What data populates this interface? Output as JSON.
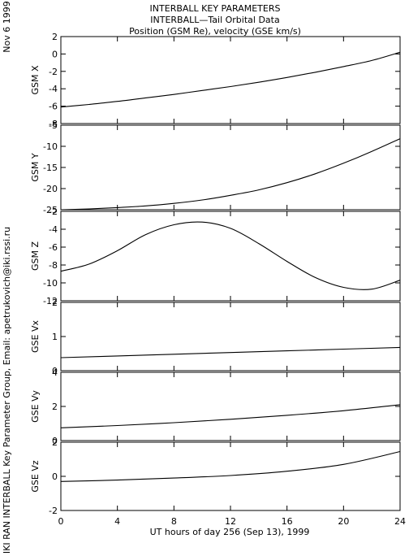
{
  "header": {
    "title_line1": "INTERBALL KEY PARAMETERS",
    "title_line2": "INTERBALL—Tail Orbital Data",
    "title_line3": "Position (GSM Re), velocity (GSE km/s)"
  },
  "side_date": "Nov  6 1999",
  "side_credit": "IKI RAN INTERBALL Key Parameter Group, Email: apetrukovich@iki.rssi.ru",
  "xaxis": {
    "label": "UT hours of day 256 (Sep 13), 1999",
    "ticks": [
      "0",
      "4",
      "8",
      "12",
      "16",
      "20",
      "24"
    ],
    "range": [
      0,
      24
    ]
  },
  "chart_data": [
    {
      "type": "line",
      "ylabel": "GSM X",
      "ylim": [
        -8,
        2
      ],
      "yticks": [
        2,
        0,
        -2,
        -4,
        -6,
        -8
      ],
      "x": [
        0,
        2,
        4,
        6,
        8,
        10,
        12,
        14,
        16,
        18,
        20,
        22,
        24
      ],
      "y": [
        -6.1,
        -5.8,
        -5.45,
        -5.05,
        -4.65,
        -4.2,
        -3.75,
        -3.25,
        -2.7,
        -2.1,
        -1.45,
        -0.75,
        0.2
      ]
    },
    {
      "type": "line",
      "ylabel": "GSM Y",
      "ylim": [
        -25,
        -5
      ],
      "yticks": [
        -5,
        -10,
        -15,
        -20,
        -25
      ],
      "x": [
        0,
        2,
        4,
        6,
        8,
        10,
        12,
        14,
        16,
        18,
        20,
        22,
        24
      ],
      "y": [
        -25.0,
        -24.8,
        -24.5,
        -24.1,
        -23.5,
        -22.7,
        -21.6,
        -20.3,
        -18.6,
        -16.5,
        -14.0,
        -11.2,
        -8.2
      ]
    },
    {
      "type": "line",
      "ylabel": "GSM Z",
      "ylim": [
        -12,
        -2
      ],
      "yticks": [
        -2,
        -4,
        -6,
        -8,
        -10,
        -12
      ],
      "x": [
        0,
        2,
        4,
        6,
        8,
        10,
        12,
        14,
        16,
        18,
        20,
        22,
        24
      ],
      "y": [
        -8.7,
        -7.9,
        -6.4,
        -4.6,
        -3.5,
        -3.2,
        -3.9,
        -5.6,
        -7.6,
        -9.4,
        -10.5,
        -10.7,
        -9.7
      ]
    },
    {
      "type": "line",
      "ylabel": "GSE Vx",
      "ylim": [
        0,
        2
      ],
      "yticks": [
        2,
        1,
        0
      ],
      "x": [
        0,
        4,
        8,
        12,
        16,
        20,
        24
      ],
      "y": [
        0.38,
        0.43,
        0.48,
        0.53,
        0.58,
        0.63,
        0.68
      ]
    },
    {
      "type": "line",
      "ylabel": "GSE Vy",
      "ylim": [
        0,
        4
      ],
      "yticks": [
        4,
        2,
        0
      ],
      "x": [
        0,
        4,
        8,
        12,
        16,
        20,
        24
      ],
      "y": [
        0.75,
        0.88,
        1.05,
        1.25,
        1.48,
        1.75,
        2.1
      ]
    },
    {
      "type": "line",
      "ylabel": "GSE Vz",
      "ylim": [
        -2,
        2
      ],
      "yticks": [
        2,
        0,
        -2
      ],
      "x": [
        0,
        4,
        8,
        12,
        16,
        20,
        24
      ],
      "y": [
        -0.3,
        -0.22,
        -0.1,
        0.05,
        0.3,
        0.7,
        1.45
      ]
    }
  ]
}
